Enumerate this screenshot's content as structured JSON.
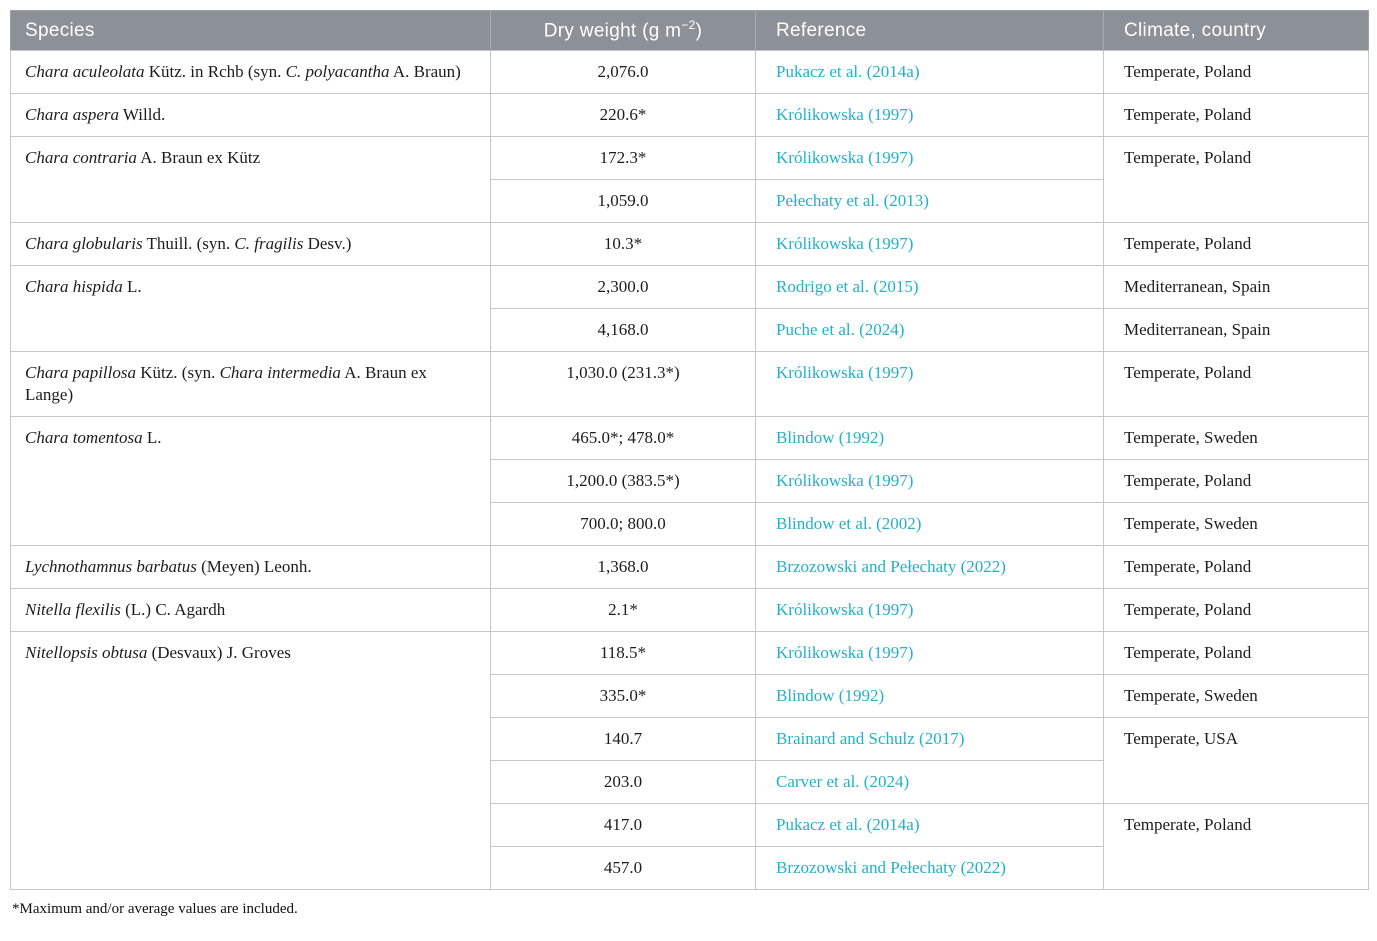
{
  "colors": {
    "header_bg": "#8b9196",
    "header_text": "#ffffff",
    "link_teal": "#22b1c7",
    "body_text": "#1c1c1c",
    "border_inner": "#c5c7c8",
    "border_outer": "#9aa0a3"
  },
  "header": {
    "species": "Species",
    "dry_weight_prefix": "Dry weight (g m",
    "dry_weight_sup": "−2",
    "dry_weight_suffix": ")",
    "reference": "Reference",
    "climate": "Climate, country"
  },
  "footnote": "*Maximum and/or average values are included.",
  "table": {
    "rows": [
      {
        "species": [
          {
            "text": "Chara aculeolata",
            "italic": true
          },
          {
            "text": " Kütz. in Rchb (syn. ",
            "italic": false
          },
          {
            "text": "C. polyacantha",
            "italic": true
          },
          {
            "text": " A. Braun)",
            "italic": false
          }
        ],
        "dry": "2,076.0",
        "ref": "Pukacz et al. (2014a)",
        "climate": "Temperate, Poland"
      },
      {
        "species": [
          {
            "text": "Chara aspera",
            "italic": true
          },
          {
            "text": " Willd.",
            "italic": false
          }
        ],
        "dry": "220.6*",
        "ref": "Królikowska (1997)",
        "climate": "Temperate, Poland"
      },
      {
        "species": [
          {
            "text": "Chara contraria",
            "italic": true
          },
          {
            "text": " A. Braun ex Kütz",
            "italic": false
          }
        ],
        "dry": "172.3*",
        "ref": "Królikowska (1997)",
        "climate": "Temperate, Poland"
      },
      {
        "dry": "1,059.0",
        "ref": "Pełechaty et al. (2013)"
      },
      {
        "species": [
          {
            "text": "Chara globularis",
            "italic": true
          },
          {
            "text": " Thuill. (syn. ",
            "italic": false
          },
          {
            "text": "C. fragilis",
            "italic": true
          },
          {
            "text": " Desv.)",
            "italic": false
          }
        ],
        "dry": "10.3*",
        "ref": "Królikowska (1997)",
        "climate": "Temperate, Poland"
      },
      {
        "species": [
          {
            "text": "Chara hispida",
            "italic": true
          },
          {
            "text": " L.",
            "italic": false
          }
        ],
        "dry": "2,300.0",
        "ref": "Rodrigo et al. (2015)",
        "climate": "Mediterranean, Spain"
      },
      {
        "dry": "4,168.0",
        "ref": "Puche et al. (2024)",
        "climate": "Mediterranean, Spain"
      },
      {
        "species": [
          {
            "text": "Chara papillosa",
            "italic": true
          },
          {
            "text": " Kütz. (syn. ",
            "italic": false
          },
          {
            "text": "Chara intermedia",
            "italic": true
          },
          {
            "text": " A. Braun ex Lange)",
            "italic": false
          }
        ],
        "dry": "1,030.0 (231.3*)",
        "ref": "Królikowska (1997)",
        "climate": "Temperate, Poland"
      },
      {
        "species": [
          {
            "text": "Chara tomentosa",
            "italic": true
          },
          {
            "text": " L.",
            "italic": false
          }
        ],
        "dry": "465.0*; 478.0*",
        "ref": "Blindow (1992)",
        "climate": "Temperate, Sweden"
      },
      {
        "dry": "1,200.0 (383.5*)",
        "ref": "Królikowska (1997)",
        "climate": "Temperate, Poland"
      },
      {
        "dry": "700.0; 800.0",
        "ref": "Blindow et al. (2002)",
        "climate": "Temperate, Sweden"
      },
      {
        "species": [
          {
            "text": "Lychnothamnus barbatus",
            "italic": true
          },
          {
            "text": " (Meyen) Leonh.",
            "italic": false
          }
        ],
        "dry": "1,368.0",
        "ref": "Brzozowski and Pełechaty (2022)",
        "climate": "Temperate, Poland"
      },
      {
        "species": [
          {
            "text": "Nitella flexilis",
            "italic": true
          },
          {
            "text": " (L.) C. Agardh",
            "italic": false
          }
        ],
        "dry": "2.1*",
        "ref": "Królikowska (1997)",
        "climate": "Temperate, Poland"
      },
      {
        "species": [
          {
            "text": "Nitellopsis obtusa",
            "italic": true
          },
          {
            "text": " (Desvaux) J. Groves",
            "italic": false
          }
        ],
        "dry": "118.5*",
        "ref": "Królikowska (1997)",
        "climate": "Temperate, Poland"
      },
      {
        "dry": "335.0*",
        "ref": "Blindow (1992)",
        "climate": "Temperate, Sweden"
      },
      {
        "dry": "140.7",
        "ref": "Brainard and Schulz (2017)",
        "climate": "Temperate, USA"
      },
      {
        "dry": "203.0",
        "ref": "Carver et al. (2024)"
      },
      {
        "dry": "417.0",
        "ref": "Pukacz et al. (2014a)",
        "climate": "Temperate, Poland"
      },
      {
        "dry": "457.0",
        "ref": "Brzozowski and Pełechaty (2022)"
      }
    ]
  }
}
